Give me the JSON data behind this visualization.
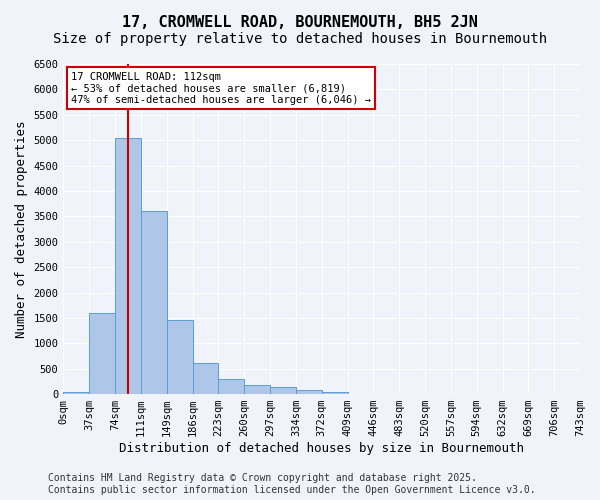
{
  "title": "17, CROMWELL ROAD, BOURNEMOUTH, BH5 2JN",
  "subtitle": "Size of property relative to detached houses in Bournemouth",
  "xlabel": "Distribution of detached houses by size in Bournemouth",
  "ylabel": "Number of detached properties",
  "footer_line1": "Contains HM Land Registry data © Crown copyright and database right 2025.",
  "footer_line2": "Contains public sector information licensed under the Open Government Licence v3.0.",
  "bin_labels": [
    "0sqm",
    "37sqm",
    "74sqm",
    "111sqm",
    "149sqm",
    "186sqm",
    "223sqm",
    "260sqm",
    "297sqm",
    "334sqm",
    "372sqm",
    "409sqm",
    "446sqm",
    "483sqm",
    "520sqm",
    "557sqm",
    "594sqm",
    "632sqm",
    "669sqm",
    "706sqm",
    "743sqm"
  ],
  "bar_values": [
    50,
    1600,
    5050,
    3600,
    1450,
    620,
    300,
    175,
    130,
    80,
    40,
    0,
    0,
    0,
    0,
    0,
    0,
    0,
    0,
    0
  ],
  "bar_color": "#aec6e8",
  "bar_edge_color": "#5a9fd4",
  "vline_bin_index": 2,
  "vline_color": "#cc0000",
  "annotation_text": "17 CROMWELL ROAD: 112sqm\n← 53% of detached houses are smaller (6,819)\n47% of semi-detached houses are larger (6,046) →",
  "annotation_box_color": "#cc0000",
  "ylim": [
    0,
    6500
  ],
  "yticks": [
    0,
    500,
    1000,
    1500,
    2000,
    2500,
    3000,
    3500,
    4000,
    4500,
    5000,
    5500,
    6000,
    6500
  ],
  "background_color": "#f0f4fa",
  "grid_color": "#ffffff",
  "title_fontsize": 11,
  "subtitle_fontsize": 10,
  "axis_label_fontsize": 9,
  "tick_fontsize": 7.5,
  "footer_fontsize": 7
}
